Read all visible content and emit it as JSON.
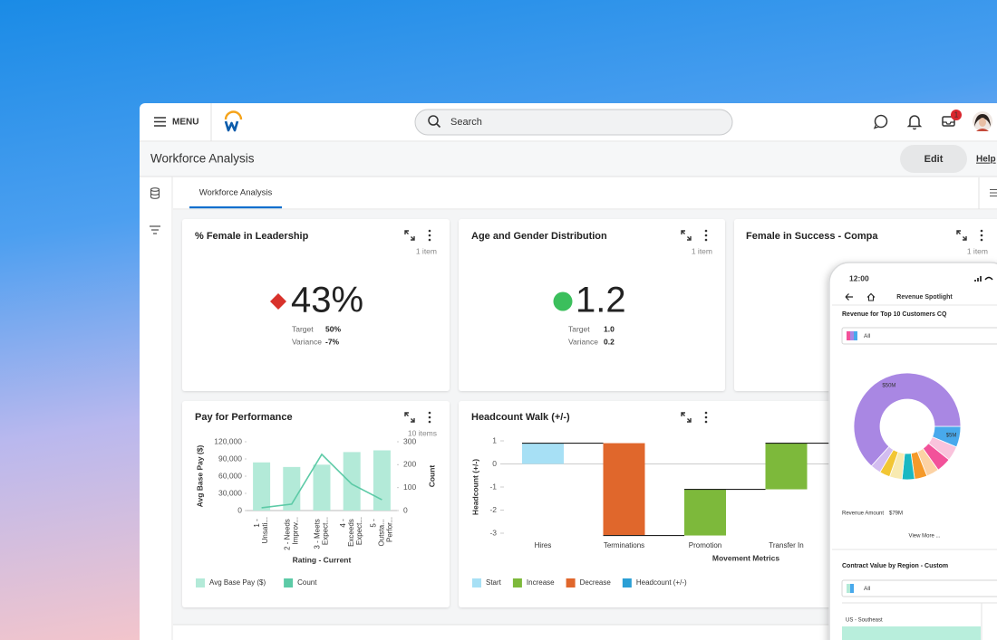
{
  "header": {
    "menu": "MENU",
    "search": "Search",
    "notification_count": "1"
  },
  "page": {
    "title": "Workforce Analysis",
    "edit": "Edit",
    "help": "Help",
    "tab": "Workforce Analysis"
  },
  "cards": [
    {
      "title": "% Female in Leadership",
      "count": "1 item",
      "value": "43%",
      "target_label": "Target",
      "target": "50%",
      "variance_label": "Variance",
      "variance": "-7%"
    },
    {
      "title": "Age and Gender Distribution",
      "count": "1 item",
      "value": "1.2",
      "target_label": "Target",
      "target": "1.0",
      "variance_label": "Variance",
      "variance": "0.2"
    },
    {
      "title": "Female in Success - Compa",
      "count": "1 item"
    },
    {
      "title": "Pay for Performance",
      "count": "10 items",
      "chart": {
        "type": "bar_line",
        "x_label": "Rating - Current",
        "y_label": "Avg Base Pay ($)",
        "y2_label": "Count",
        "categories": [
          "1 - Unsati...",
          "2 - Needs Improv...",
          "3 - Meets Expect...",
          "4 - Exceeds Expect...",
          "5 - Outsta... Perfor..."
        ],
        "series": [
          {
            "name": "Avg Base Pay ($)",
            "color": "#b3ead8",
            "values": [
              84000,
              76000,
              80000,
              102000,
              105000
            ]
          },
          {
            "name": "Count",
            "color": "#5ccaa6",
            "type": "line",
            "axis": "y2",
            "values": [
              12,
              28,
              245,
              115,
              47
            ]
          }
        ],
        "ylim": [
          0,
          120000
        ],
        "yticks": [
          0,
          {
            "value": 30000,
            "label": "30,000"
          },
          {
            "value": 60000,
            "label": "60,000"
          },
          {
            "value": 90000,
            "label": "90,000"
          },
          {
            "value": 120000,
            "label": "120,000"
          }
        ],
        "y2lim": [
          0,
          300
        ],
        "y2ticks": [
          0,
          100,
          200,
          300
        ]
      }
    },
    {
      "title": "Headcount Walk (+/-)",
      "chart": {
        "type": "waterfall",
        "x_label": "Movement Metrics",
        "y_label": "Headcount (+/-)",
        "categories": [
          "Hires",
          "Terminations",
          "Promotion",
          "Transfer In"
        ],
        "series": [
          {
            "name": "Start",
            "color": "#a7e0f5",
            "values": [
              0.9,
              null,
              null,
              null
            ]
          },
          {
            "name": "Increase",
            "color": "#7db93b",
            "values": [
              null,
              null,
              2,
              2
            ]
          },
          {
            "name": "Decrease",
            "color": "#e0672c",
            "values": [
              null,
              -4,
              null,
              null
            ]
          },
          {
            "name": "Headcount (+/-)",
            "color": "#2b9fd5",
            "values": [
              null,
              null,
              null,
              null
            ]
          }
        ],
        "ylim": [
          -3.2,
          1.2
        ],
        "yticks": [
          -3,
          -2,
          -1,
          0,
          1
        ]
      }
    }
  ],
  "phone": {
    "time": "12:00",
    "title": "Revenue Spotlight",
    "section1": "Revenue for Top 10 Customers CQ",
    "filter1": "All",
    "donut": {
      "type": "donut",
      "values": [
        5,
        3.5,
        3.5,
        3,
        3,
        3,
        3,
        2.5,
        2.5,
        50
      ],
      "colors": [
        "#48a9ec",
        "#f9c3dc",
        "#f2529a",
        "#fcd2a4",
        "#f59a2a",
        "#19b8c2",
        "#f8eab0",
        "#f2c634",
        "#d3bdf0",
        "#a987e3"
      ],
      "value_labels": [
        "$5M",
        null,
        null,
        null,
        null,
        null,
        null,
        null,
        null,
        "$50M"
      ]
    },
    "amount_label": "Revenue Amount",
    "amount": "$79M",
    "more": "View More ...",
    "section2": "Contract Value by Region - Custom",
    "filter2": "All",
    "region": "US - Southeast"
  }
}
